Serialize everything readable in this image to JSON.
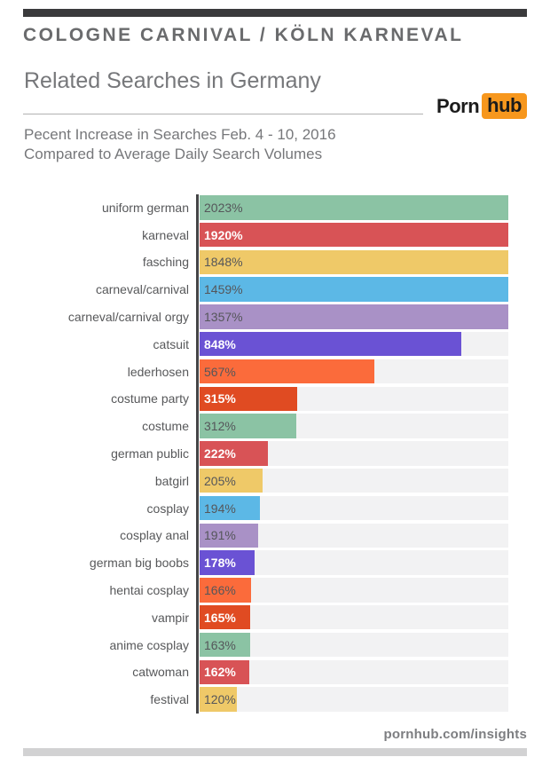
{
  "header": {
    "title": "COLOGNE CARNIVAL / KÖLN KARNEVAL",
    "subtitle": "Related Searches in Germany",
    "description_line1": "Pecent Increase in Searches Feb. 4 - 10, 2016",
    "description_line2": "Compared to Average Daily Search Volumes",
    "logo": {
      "part1": "Porn",
      "part2": "hub",
      "badge_color": "#f7971d"
    }
  },
  "chart_data": {
    "type": "bar",
    "orientation": "horizontal",
    "title": "Cologne Carnival / Köln Karneval — Related Searches in Germany",
    "xlabel": "Percent increase in searches vs. average daily search volume",
    "xlim": [
      0,
      1000
    ],
    "grid": false,
    "legend": false,
    "note": "Bar lengths are linear with axis max 1000%; values above 1000% render at full track width",
    "categories": [
      "uniform german",
      "karneval",
      "fasching",
      "carneval/carnival",
      "carneval/carnival orgy",
      "catsuit",
      "lederhosen",
      "costume party",
      "costume",
      "german public",
      "batgirl",
      "cosplay",
      "cosplay anal",
      "german big boobs",
      "hentai cosplay",
      "vampir",
      "anime cosplay",
      "catwoman",
      "festival"
    ],
    "values": [
      2023,
      1920,
      1848,
      1459,
      1357,
      848,
      567,
      315,
      312,
      222,
      205,
      194,
      191,
      178,
      166,
      165,
      163,
      162,
      120
    ],
    "rows": [
      {
        "label": "uniform german",
        "value": 2023,
        "display": "2023%",
        "color": "#8bc3a4",
        "text_style": "dark"
      },
      {
        "label": "karneval",
        "value": 1920,
        "display": "1920%",
        "color": "#d85356",
        "text_style": "white"
      },
      {
        "label": "fasching",
        "value": 1848,
        "display": "1848%",
        "color": "#efc968",
        "text_style": "dark"
      },
      {
        "label": "carneval/carnival",
        "value": 1459,
        "display": "1459%",
        "color": "#5cb8e6",
        "text_style": "dark"
      },
      {
        "label": "carneval/carnival orgy",
        "value": 1357,
        "display": "1357%",
        "color": "#a991c6",
        "text_style": "dark"
      },
      {
        "label": "catsuit",
        "value": 848,
        "display": "848%",
        "color": "#6a52d4",
        "text_style": "white"
      },
      {
        "label": "lederhosen",
        "value": 567,
        "display": "567%",
        "color": "#fb6b3b",
        "text_style": "dark"
      },
      {
        "label": "costume party",
        "value": 315,
        "display": "315%",
        "color": "#e04b22",
        "text_style": "white"
      },
      {
        "label": "costume",
        "value": 312,
        "display": "312%",
        "color": "#8bc3a4",
        "text_style": "dark"
      },
      {
        "label": "german public",
        "value": 222,
        "display": "222%",
        "color": "#d85356",
        "text_style": "white"
      },
      {
        "label": "batgirl",
        "value": 205,
        "display": "205%",
        "color": "#efc968",
        "text_style": "dark"
      },
      {
        "label": "cosplay",
        "value": 194,
        "display": "194%",
        "color": "#5cb8e6",
        "text_style": "dark"
      },
      {
        "label": "cosplay anal",
        "value": 191,
        "display": "191%",
        "color": "#a991c6",
        "text_style": "dark"
      },
      {
        "label": "german big boobs",
        "value": 178,
        "display": "178%",
        "color": "#6a52d4",
        "text_style": "white"
      },
      {
        "label": "hentai cosplay",
        "value": 166,
        "display": "166%",
        "color": "#fb6b3b",
        "text_style": "dark"
      },
      {
        "label": "vampir",
        "value": 165,
        "display": "165%",
        "color": "#e04b22",
        "text_style": "white"
      },
      {
        "label": "anime cosplay",
        "value": 163,
        "display": "163%",
        "color": "#8bc3a4",
        "text_style": "dark"
      },
      {
        "label": "catwoman",
        "value": 162,
        "display": "162%",
        "color": "#d85356",
        "text_style": "white"
      },
      {
        "label": "festival",
        "value": 120,
        "display": "120%",
        "color": "#efc968",
        "text_style": "dark"
      }
    ],
    "colors": {
      "track": "#f2f2f3",
      "axis": "#454547",
      "dark_text": "#55565a",
      "white_text": "#ffffff"
    }
  },
  "footer": {
    "link_label": "pornhub.com/insights"
  }
}
